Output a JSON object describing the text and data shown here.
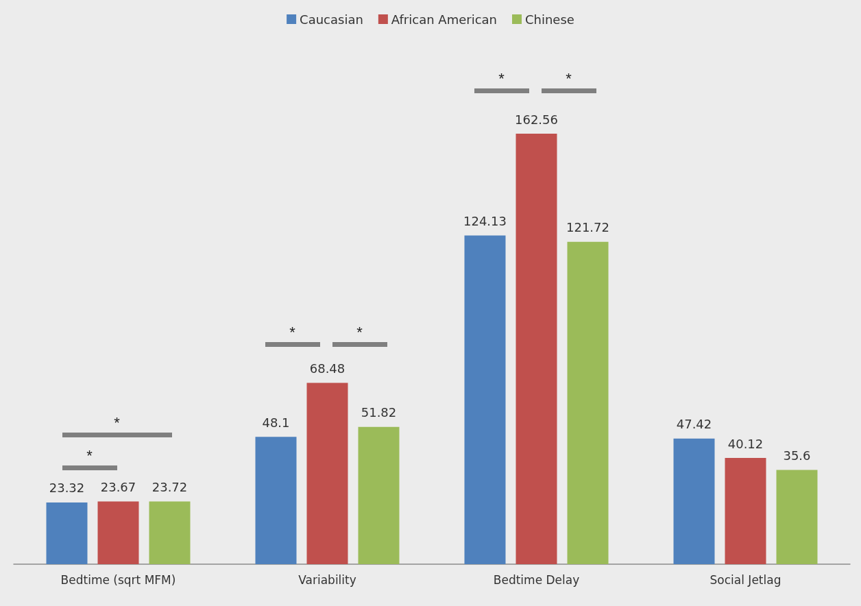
{
  "chart_data": {
    "type": "bar",
    "categories": [
      "Bedtime (sqrt MFM)",
      "Variability",
      "Bedtime Delay",
      "Social Jetlag"
    ],
    "series": [
      {
        "name": "Caucasian",
        "color": "#4f81bd",
        "values": [
          23.32,
          48.1,
          124.13,
          47.42
        ]
      },
      {
        "name": "African American",
        "color": "#c0504d",
        "values": [
          23.67,
          68.48,
          162.56,
          40.12
        ]
      },
      {
        "name": "Chinese",
        "color": "#9bbb59",
        "values": [
          23.72,
          51.82,
          121.72,
          35.6
        ]
      }
    ],
    "data_labels": true,
    "legend": "top",
    "annotations": [
      "*",
      "*",
      "*",
      "*",
      "*",
      "*"
    ]
  }
}
